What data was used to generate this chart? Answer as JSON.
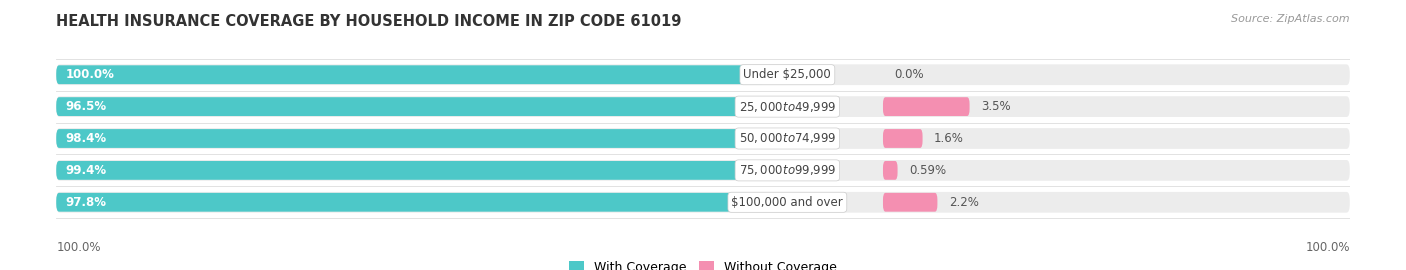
{
  "title": "HEALTH INSURANCE COVERAGE BY HOUSEHOLD INCOME IN ZIP CODE 61019",
  "source": "Source: ZipAtlas.com",
  "categories": [
    "Under $25,000",
    "$25,000 to $49,999",
    "$50,000 to $74,999",
    "$75,000 to $99,999",
    "$100,000 and over"
  ],
  "with_coverage": [
    100.0,
    96.5,
    98.4,
    99.4,
    97.8
  ],
  "without_coverage": [
    0.0,
    3.5,
    1.6,
    0.59,
    2.2
  ],
  "color_with": "#4dc8c8",
  "color_without": "#f48fb1",
  "bar_bg": "#ececec",
  "background": "#ffffff",
  "legend_with": "With Coverage",
  "legend_without": "Without Coverage",
  "bottom_left_label": "100.0%",
  "bottom_right_label": "100.0%",
  "title_fontsize": 10.5,
  "source_fontsize": 8,
  "label_fontsize": 8.5,
  "cat_fontsize": 8.5
}
